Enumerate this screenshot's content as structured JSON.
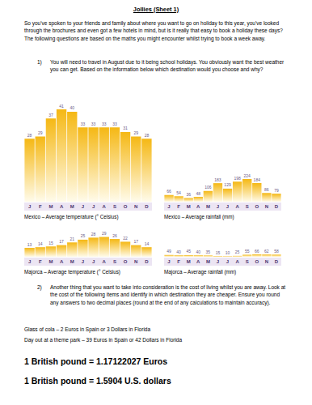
{
  "header": {
    "title": "Jollies (Sheet 1)"
  },
  "intro": "So you've spoken to your friends and family about where you want to go on holiday to this year, you've looked through the brochures and even got a few hotels in mind, but is it really that easy to book a holiday these days?  The following questions are based on the maths you might encounter whilst trying to book a week away.",
  "questions": [
    {
      "number": "1)",
      "text": "You will need to travel in August due to it being school holidays.  You obviously want the best weather you can get.  Based on the information below which destination would you choose and why?"
    },
    {
      "number": "2)",
      "text": "Another thing that you want to take into consideration is the cost of living whilst you are away.  Look at the cost of the following items and identify in which destination they are cheaper.  Ensure you round any answers to two decimal places (round at the end of any calculations to maintain accuracy)."
    }
  ],
  "chart_data": [
    {
      "type": "bar",
      "title": "Mexico – Average temperature (° Celsius)",
      "categories": [
        "J",
        "F",
        "M",
        "A",
        "M",
        "J",
        "J",
        "A",
        "S",
        "O",
        "N",
        "D"
      ],
      "values": [
        28,
        29,
        37,
        41,
        40,
        33,
        33,
        33,
        33,
        31,
        29,
        28
      ],
      "color": "#f5b814",
      "ylim": [
        0,
        45
      ],
      "grid": false,
      "data_labels": true,
      "tick_labels": "x"
    },
    {
      "type": "bar",
      "title": "Mexico – Average rainfall (mm)",
      "categories": [
        "J",
        "F",
        "M",
        "A",
        "M",
        "J",
        "J",
        "A",
        "S",
        "O",
        "N",
        "D"
      ],
      "values": [
        66,
        54,
        36,
        48,
        106,
        183,
        129,
        198,
        224,
        184,
        86,
        79
      ],
      "color": "#f5b814",
      "ylim": [
        0,
        1000
      ],
      "grid": false,
      "data_labels": true,
      "tick_labels": "x"
    },
    {
      "type": "bar",
      "title": "Majorca – Average temperature (° Celsius)",
      "categories": [
        "J",
        "F",
        "M",
        "A",
        "M",
        "J",
        "J",
        "A",
        "S",
        "O",
        "N",
        "D"
      ],
      "values": [
        13,
        14,
        15,
        17,
        21,
        25,
        28,
        29,
        26,
        22,
        17,
        14
      ],
      "color": "#f5b814",
      "ylim": [
        0,
        32
      ],
      "grid": false,
      "data_labels": true,
      "tick_labels": "x"
    },
    {
      "type": "bar",
      "title": "Majorca – Average rainfall (mm)",
      "categories": [
        "J",
        "F",
        "M",
        "A",
        "M",
        "J",
        "J",
        "A",
        "S",
        "O",
        "N",
        "D"
      ],
      "values": [
        49,
        40,
        45,
        40,
        35,
        15,
        10,
        25,
        55,
        66,
        62,
        58
      ],
      "color": "#f5b814",
      "ylim": [
        0,
        600
      ],
      "grid": false,
      "data_labels": true,
      "tick_labels": "x"
    }
  ],
  "items": [
    "Glass of cola – 2 Euros in Spain or 3 Dollars in Florida",
    "Day out at a theme park – 39 Euros in Spain or 42 Dollars in Florida"
  ],
  "rates": [
    "1 British pound = 1.17122027 Euros",
    "1 British pound = 1.5904 U.S. dollars"
  ]
}
